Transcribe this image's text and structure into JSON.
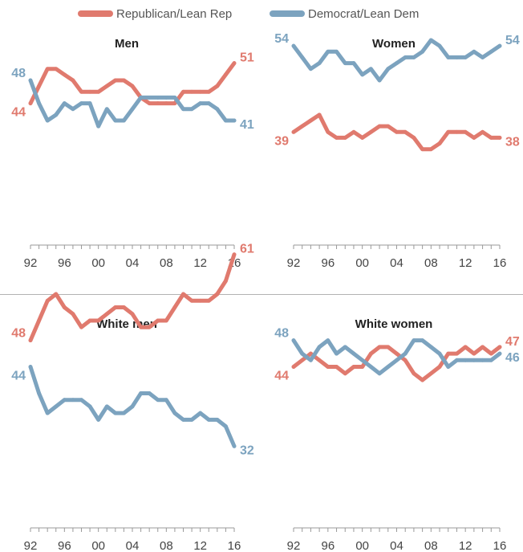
{
  "legend": {
    "items": [
      {
        "label": "Republican/Lean Rep",
        "color": "#e07a6e"
      },
      {
        "label": "Democrat/Lean Dem",
        "color": "#7ca3bf"
      }
    ]
  },
  "colors": {
    "rep": "#e07a6e",
    "dem": "#7ca3bf",
    "axis": "#999999"
  },
  "chart_data": [
    {
      "type": "line",
      "title": "Men",
      "x": [
        1992,
        1993,
        1994,
        1995,
        1996,
        1997,
        1998,
        1999,
        2000,
        2001,
        2002,
        2003,
        2004,
        2005,
        2006,
        2007,
        2008,
        2009,
        2010,
        2011,
        2012,
        2013,
        2014,
        2015,
        2016
      ],
      "xticks": [
        "92",
        "96",
        "00",
        "04",
        "08",
        "12",
        "16"
      ],
      "ylim": [
        20,
        62
      ],
      "series": [
        {
          "name": "Republican/Lean Rep",
          "values": [
            44,
            47,
            50,
            50,
            49,
            48,
            46,
            46,
            46,
            47,
            48,
            48,
            47,
            45,
            44,
            44,
            44,
            44,
            46,
            46,
            46,
            46,
            47,
            49,
            51
          ],
          "start_label": "44",
          "end_label": "51"
        },
        {
          "name": "Democrat/Lean Dem",
          "values": [
            48,
            44,
            41,
            42,
            44,
            43,
            44,
            44,
            40,
            43,
            41,
            41,
            43,
            45,
            45,
            45,
            45,
            45,
            43,
            43,
            44,
            44,
            43,
            41,
            41
          ],
          "start_label": "48",
          "end_label": "41"
        }
      ]
    },
    {
      "type": "line",
      "title": "Women",
      "x": [
        1992,
        1993,
        1994,
        1995,
        1996,
        1997,
        1998,
        1999,
        2000,
        2001,
        2002,
        2003,
        2004,
        2005,
        2006,
        2007,
        2008,
        2009,
        2010,
        2011,
        2012,
        2013,
        2014,
        2015,
        2016
      ],
      "xticks": [
        "92",
        "96",
        "00",
        "04",
        "08",
        "12",
        "16"
      ],
      "ylim": [
        20,
        62
      ],
      "series": [
        {
          "name": "Republican/Lean Rep",
          "values": [
            39,
            40,
            41,
            42,
            39,
            38,
            38,
            39,
            38,
            39,
            40,
            40,
            39,
            39,
            38,
            36,
            36,
            37,
            39,
            39,
            39,
            38,
            39,
            38,
            38
          ],
          "start_label": "39",
          "end_label": "38"
        },
        {
          "name": "Democrat/Lean Dem",
          "values": [
            54,
            52,
            50,
            51,
            53,
            53,
            51,
            51,
            49,
            50,
            48,
            50,
            51,
            52,
            52,
            53,
            55,
            54,
            52,
            52,
            52,
            53,
            52,
            53,
            54
          ],
          "start_label": "54",
          "end_label": "54"
        }
      ]
    },
    {
      "type": "line",
      "title": "White men",
      "x": [
        1992,
        1993,
        1994,
        1995,
        1996,
        1997,
        1998,
        1999,
        2000,
        2001,
        2002,
        2003,
        2004,
        2005,
        2006,
        2007,
        2008,
        2009,
        2010,
        2011,
        2012,
        2013,
        2014,
        2015,
        2016
      ],
      "xticks": [
        "92",
        "96",
        "00",
        "04",
        "08",
        "12",
        "16"
      ],
      "ylim": [
        20,
        64
      ],
      "series": [
        {
          "name": "Republican/Lean Rep",
          "values": [
            48,
            51,
            54,
            55,
            53,
            52,
            50,
            51,
            51,
            52,
            53,
            53,
            52,
            50,
            50,
            51,
            51,
            53,
            55,
            54,
            54,
            54,
            55,
            57,
            61
          ],
          "start_label": "48",
          "end_label": "61"
        },
        {
          "name": "Democrat/Lean Dem",
          "values": [
            44,
            40,
            37,
            38,
            39,
            39,
            39,
            38,
            36,
            38,
            37,
            37,
            38,
            40,
            40,
            39,
            39,
            37,
            36,
            36,
            37,
            36,
            36,
            35,
            32
          ],
          "start_label": "44",
          "end_label": "32"
        }
      ]
    },
    {
      "type": "line",
      "title": "White women",
      "x": [
        1992,
        1993,
        1994,
        1995,
        1996,
        1997,
        1998,
        1999,
        2000,
        2001,
        2002,
        2003,
        2004,
        2005,
        2006,
        2007,
        2008,
        2009,
        2010,
        2011,
        2012,
        2013,
        2014,
        2015,
        2016
      ],
      "xticks": [
        "92",
        "96",
        "00",
        "04",
        "08",
        "12",
        "16"
      ],
      "ylim": [
        20,
        64
      ],
      "series": [
        {
          "name": "Republican/Lean Rep",
          "values": [
            44,
            45,
            46,
            45,
            44,
            44,
            43,
            44,
            44,
            46,
            47,
            47,
            46,
            45,
            43,
            42,
            43,
            44,
            46,
            46,
            47,
            46,
            47,
            46,
            47
          ],
          "start_label": "44",
          "end_label": "47"
        },
        {
          "name": "Democrat/Lean Dem",
          "values": [
            48,
            46,
            45,
            47,
            48,
            46,
            47,
            46,
            45,
            44,
            43,
            44,
            45,
            46,
            48,
            48,
            47,
            46,
            44,
            45,
            45,
            45,
            45,
            45,
            46
          ],
          "start_label": "48",
          "end_label": "46"
        }
      ]
    }
  ]
}
